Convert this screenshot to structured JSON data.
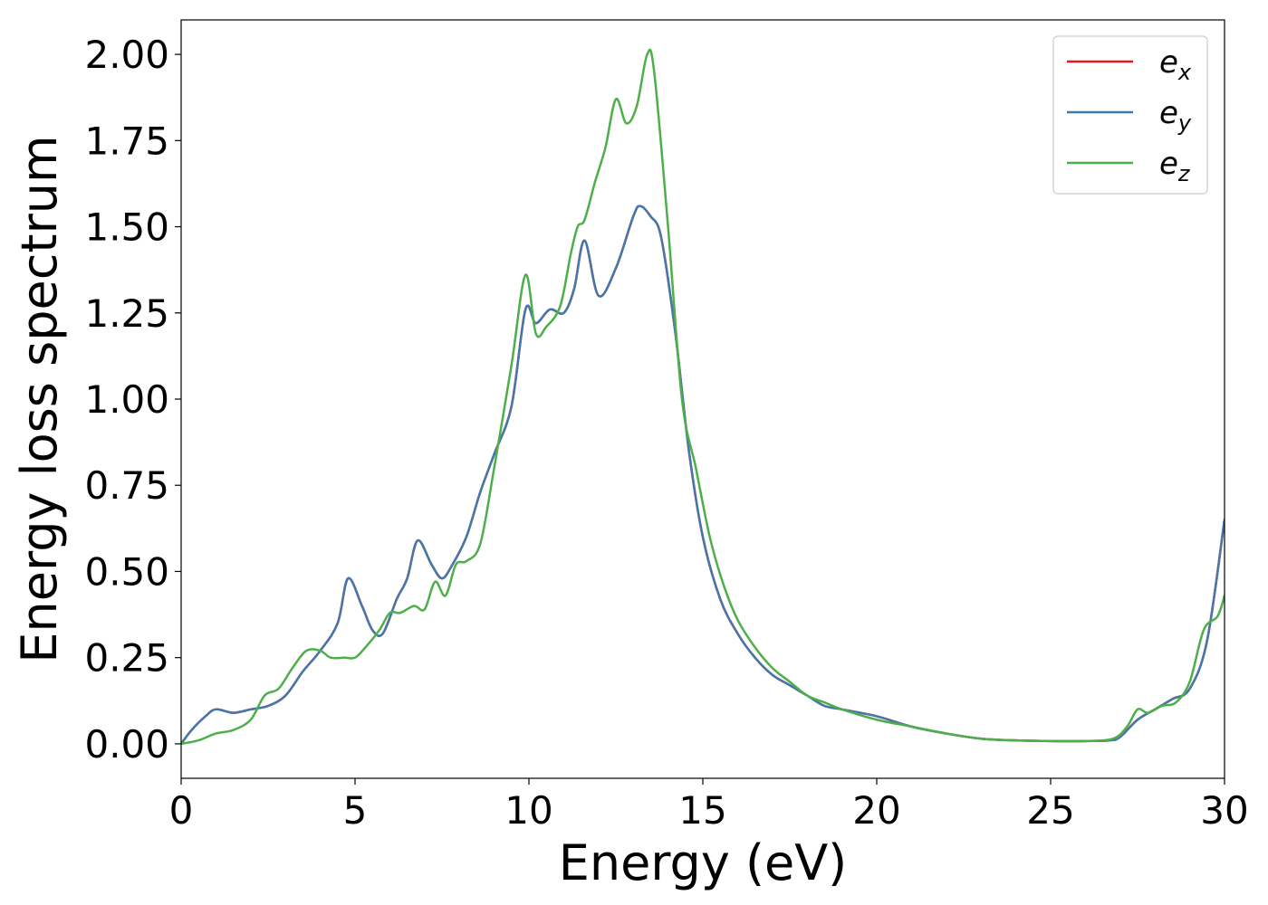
{
  "chart_data": {
    "type": "line",
    "title": "",
    "xlabel": "Energy (eV)",
    "ylabel": "Energy loss spectrum",
    "xlim": [
      0,
      30
    ],
    "ylim": [
      -0.1,
      2.1
    ],
    "xticks": [
      0,
      5,
      10,
      15,
      20,
      25,
      30
    ],
    "xtick_labels": [
      "0",
      "5",
      "10",
      "15",
      "20",
      "25",
      "30"
    ],
    "yticks": [
      0.0,
      0.25,
      0.5,
      0.75,
      1.0,
      1.25,
      1.5,
      1.75,
      2.0
    ],
    "ytick_labels": [
      "0.00",
      "0.25",
      "0.50",
      "0.75",
      "1.00",
      "1.25",
      "1.50",
      "1.75",
      "2.00"
    ],
    "grid": false,
    "legend_position": "top-right",
    "series": [
      {
        "name": "e_x",
        "legend_base": "e",
        "legend_sub": "x",
        "color": "#e41a1c",
        "x": [
          0,
          0.3,
          0.7,
          1.0,
          1.5,
          2.0,
          2.5,
          3.0,
          3.5,
          4.0,
          4.5,
          4.8,
          5.2,
          5.5,
          5.8,
          6.2,
          6.5,
          6.8,
          7.2,
          7.5,
          7.8,
          8.2,
          8.6,
          9.0,
          9.5,
          9.9,
          10.2,
          10.6,
          11.0,
          11.3,
          11.6,
          12.0,
          12.5,
          13.0,
          13.2,
          13.5,
          13.8,
          14.2,
          14.6,
          15.0,
          15.5,
          16.0,
          16.5,
          17.0,
          17.5,
          18.0,
          18.5,
          19.0,
          20.0,
          21.0,
          22.0,
          23.0,
          24.0,
          25.0,
          26.0,
          26.7,
          27.0,
          27.5,
          28.0,
          28.5,
          29.0,
          29.5,
          30.0
        ],
        "y": [
          0.0,
          0.04,
          0.08,
          0.1,
          0.09,
          0.1,
          0.11,
          0.14,
          0.21,
          0.27,
          0.35,
          0.48,
          0.4,
          0.33,
          0.32,
          0.42,
          0.48,
          0.59,
          0.52,
          0.48,
          0.52,
          0.6,
          0.73,
          0.84,
          0.98,
          1.26,
          1.22,
          1.26,
          1.25,
          1.32,
          1.46,
          1.3,
          1.38,
          1.53,
          1.56,
          1.53,
          1.47,
          1.2,
          0.85,
          0.6,
          0.42,
          0.32,
          0.25,
          0.2,
          0.17,
          0.14,
          0.11,
          0.1,
          0.08,
          0.05,
          0.03,
          0.015,
          0.01,
          0.008,
          0.008,
          0.01,
          0.02,
          0.07,
          0.1,
          0.13,
          0.16,
          0.3,
          0.65
        ]
      },
      {
        "name": "e_y",
        "legend_base": "e",
        "legend_sub": "y",
        "color": "#4477aa",
        "x": [
          0,
          0.3,
          0.7,
          1.0,
          1.5,
          2.0,
          2.5,
          3.0,
          3.5,
          4.0,
          4.5,
          4.8,
          5.2,
          5.5,
          5.8,
          6.2,
          6.5,
          6.8,
          7.2,
          7.5,
          7.8,
          8.2,
          8.6,
          9.0,
          9.5,
          9.9,
          10.2,
          10.6,
          11.0,
          11.3,
          11.6,
          12.0,
          12.5,
          13.0,
          13.2,
          13.5,
          13.8,
          14.2,
          14.6,
          15.0,
          15.5,
          16.0,
          16.5,
          17.0,
          17.5,
          18.0,
          18.5,
          19.0,
          20.0,
          21.0,
          22.0,
          23.0,
          24.0,
          25.0,
          26.0,
          26.7,
          27.0,
          27.5,
          28.0,
          28.5,
          29.0,
          29.5,
          30.0
        ],
        "y": [
          0.0,
          0.04,
          0.08,
          0.1,
          0.09,
          0.1,
          0.11,
          0.14,
          0.21,
          0.27,
          0.35,
          0.48,
          0.4,
          0.33,
          0.32,
          0.42,
          0.48,
          0.59,
          0.52,
          0.48,
          0.52,
          0.6,
          0.73,
          0.84,
          0.98,
          1.26,
          1.22,
          1.26,
          1.25,
          1.32,
          1.46,
          1.3,
          1.38,
          1.53,
          1.56,
          1.53,
          1.47,
          1.2,
          0.85,
          0.6,
          0.42,
          0.32,
          0.25,
          0.2,
          0.17,
          0.14,
          0.11,
          0.1,
          0.08,
          0.05,
          0.03,
          0.015,
          0.01,
          0.008,
          0.008,
          0.01,
          0.02,
          0.07,
          0.1,
          0.13,
          0.16,
          0.3,
          0.65
        ]
      },
      {
        "name": "e_z",
        "legend_base": "e",
        "legend_sub": "z",
        "color": "#4daf4a",
        "x": [
          0,
          0.5,
          1.0,
          1.5,
          2.0,
          2.4,
          2.8,
          3.2,
          3.6,
          4.0,
          4.3,
          4.7,
          5.0,
          5.3,
          5.7,
          6.0,
          6.3,
          6.7,
          7.0,
          7.3,
          7.6,
          7.9,
          8.2,
          8.6,
          9.0,
          9.5,
          9.9,
          10.2,
          10.5,
          10.9,
          11.2,
          11.4,
          11.6,
          11.9,
          12.2,
          12.5,
          12.8,
          13.1,
          13.4,
          13.6,
          14.0,
          14.4,
          14.8,
          15.2,
          15.6,
          16.0,
          16.5,
          17.0,
          17.5,
          18.0,
          18.5,
          19.0,
          20.0,
          21.0,
          22.0,
          23.0,
          24.0,
          25.0,
          26.0,
          26.8,
          27.2,
          27.5,
          27.8,
          28.2,
          28.6,
          29.0,
          29.4,
          29.8,
          30.0
        ],
        "y": [
          0.0,
          0.01,
          0.03,
          0.04,
          0.07,
          0.14,
          0.16,
          0.22,
          0.27,
          0.27,
          0.25,
          0.25,
          0.25,
          0.28,
          0.33,
          0.38,
          0.38,
          0.4,
          0.39,
          0.47,
          0.43,
          0.52,
          0.53,
          0.58,
          0.8,
          1.1,
          1.36,
          1.19,
          1.21,
          1.27,
          1.42,
          1.5,
          1.52,
          1.63,
          1.73,
          1.87,
          1.8,
          1.85,
          2.0,
          1.95,
          1.5,
          1.0,
          0.8,
          0.6,
          0.46,
          0.36,
          0.28,
          0.22,
          0.18,
          0.14,
          0.12,
          0.1,
          0.07,
          0.05,
          0.03,
          0.015,
          0.01,
          0.008,
          0.008,
          0.015,
          0.05,
          0.1,
          0.09,
          0.11,
          0.12,
          0.18,
          0.33,
          0.37,
          0.43
        ]
      }
    ]
  }
}
